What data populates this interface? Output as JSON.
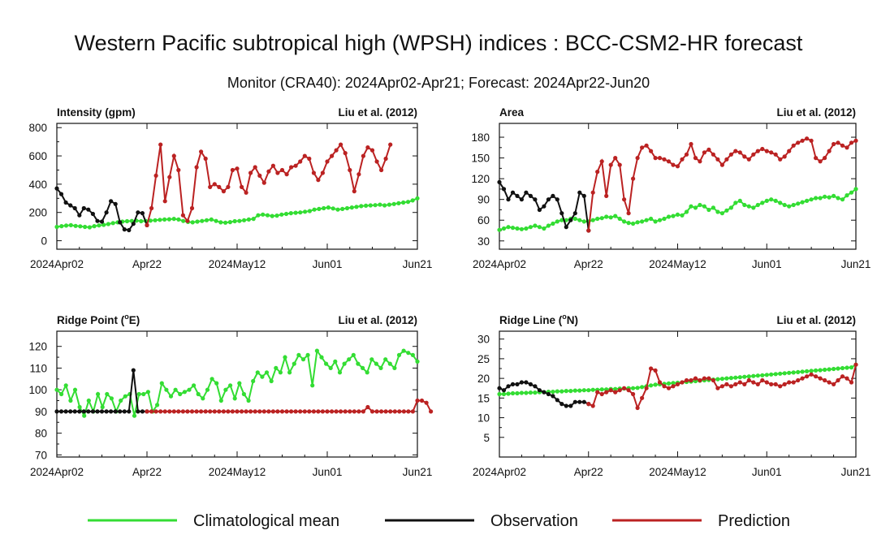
{
  "title": "Western Pacific subtropical high (WPSH) indices : BCC-CSM2-HR forecast",
  "subtitle": "Monitor (CRA40): 2024Apr02-Apr21; Forecast: 2024Apr22-Jun20",
  "colors": {
    "climatology": "#33dd33",
    "observation": "#111111",
    "prediction": "#bb2222"
  },
  "legend": [
    {
      "key": "climatology",
      "label": "Climatological mean"
    },
    {
      "key": "observation",
      "label": "Observation"
    },
    {
      "key": "prediction",
      "label": "Prediction"
    }
  ],
  "chart_data": [
    {
      "type": "line",
      "title_main": "Intensity (gpm)",
      "title_ref": "Liu et al. (2012)",
      "x_tick_labels": [
        "2024Apr02",
        "Apr22",
        "2024May12",
        "Jun01",
        "Jun21"
      ],
      "x_tick_days": [
        0,
        20,
        40,
        60,
        80
      ],
      "ylim": [
        -60,
        830
      ],
      "yticks": [
        0,
        200,
        400,
        600,
        800
      ],
      "series": [
        {
          "name": "Climatological mean",
          "key": "climatology",
          "x_start": 0,
          "values": [
            98,
            103,
            107,
            110,
            105,
            102,
            98,
            95,
            103,
            108,
            112,
            118,
            125,
            130,
            135,
            138,
            140,
            142,
            138,
            140,
            142,
            145,
            148,
            150,
            152,
            155,
            150,
            140,
            133,
            130,
            135,
            140,
            145,
            150,
            140,
            130,
            128,
            132,
            138,
            140,
            145,
            150,
            155,
            180,
            185,
            180,
            175,
            178,
            185,
            190,
            195,
            198,
            200,
            205,
            210,
            220,
            225,
            230,
            235,
            228,
            220,
            225,
            230,
            235,
            240,
            245,
            248,
            250,
            252,
            255,
            250,
            255,
            260,
            265,
            270,
            275,
            285,
            300
          ]
        },
        {
          "name": "Observation",
          "key": "observation",
          "x_start": 0,
          "values": [
            370,
            330,
            270,
            250,
            230,
            180,
            230,
            220,
            190,
            140,
            135,
            200,
            280,
            260,
            130,
            80,
            75,
            120,
            200,
            195,
            110
          ]
        },
        {
          "name": "Prediction",
          "key": "prediction",
          "x_start": 20,
          "values": [
            110,
            230,
            460,
            680,
            280,
            450,
            600,
            500,
            180,
            140,
            230,
            520,
            630,
            580,
            380,
            400,
            380,
            350,
            380,
            500,
            510,
            380,
            340,
            480,
            520,
            460,
            410,
            490,
            530,
            480,
            500,
            470,
            520,
            530,
            560,
            600,
            580,
            480,
            430,
            480,
            560,
            600,
            640,
            680,
            620,
            500,
            350,
            470,
            600,
            660,
            640,
            560,
            500,
            580,
            680
          ]
        }
      ]
    },
    {
      "type": "line",
      "title_main": "Area",
      "title_ref": "Liu et al. (2012)",
      "x_tick_labels": [
        "2024Apr02",
        "Apr22",
        "2024May12",
        "Jun01",
        "Jun21"
      ],
      "x_tick_days": [
        0,
        20,
        40,
        60,
        80
      ],
      "ylim": [
        18,
        200
      ],
      "yticks": [
        30,
        60,
        90,
        120,
        150,
        180
      ],
      "series": [
        {
          "name": "Climatological mean",
          "key": "climatology",
          "x_start": 0,
          "values": [
            46,
            48,
            50,
            49,
            48,
            47,
            48,
            50,
            52,
            50,
            48,
            52,
            55,
            58,
            60,
            60,
            62,
            62,
            60,
            58,
            58,
            60,
            62,
            63,
            65,
            64,
            66,
            62,
            58,
            56,
            55,
            57,
            58,
            60,
            62,
            58,
            60,
            62,
            65,
            66,
            68,
            67,
            72,
            80,
            78,
            82,
            80,
            75,
            78,
            72,
            70,
            74,
            78,
            85,
            88,
            82,
            80,
            78,
            82,
            85,
            88,
            90,
            88,
            85,
            82,
            80,
            82,
            84,
            86,
            88,
            90,
            92,
            92,
            94,
            93,
            95,
            92,
            90,
            96,
            100,
            105
          ]
        },
        {
          "name": "Observation",
          "key": "observation",
          "x_start": 0,
          "values": [
            115,
            105,
            90,
            100,
            95,
            90,
            100,
            95,
            90,
            75,
            80,
            90,
            95,
            90,
            70,
            50,
            60,
            70,
            100,
            95,
            45
          ]
        },
        {
          "name": "Prediction",
          "key": "prediction",
          "x_start": 20,
          "values": [
            45,
            100,
            130,
            145,
            95,
            140,
            150,
            140,
            90,
            70,
            120,
            150,
            165,
            168,
            160,
            150,
            150,
            148,
            145,
            140,
            138,
            148,
            155,
            170,
            150,
            145,
            158,
            162,
            155,
            148,
            140,
            148,
            155,
            160,
            158,
            152,
            148,
            155,
            160,
            163,
            160,
            158,
            155,
            148,
            152,
            160,
            168,
            172,
            175,
            178,
            175,
            150,
            145,
            150,
            160,
            170,
            172,
            168,
            165,
            172,
            175
          ]
        }
      ]
    },
    {
      "type": "line",
      "title_main": "Ridge Point (",
      "title_sup": "o",
      "title_unit": "E)",
      "title_ref": "Liu et al. (2012)",
      "x_tick_labels": [
        "2024Apr02",
        "Apr22",
        "2024May12",
        "Jun01",
        "Jun21"
      ],
      "x_tick_days": [
        0,
        20,
        40,
        60,
        80
      ],
      "ylim": [
        69,
        127
      ],
      "yticks": [
        70,
        80,
        90,
        100,
        110,
        120
      ],
      "series": [
        {
          "name": "Climatological mean",
          "key": "climatology",
          "x_start": 0,
          "values": [
            100,
            98,
            102,
            95,
            100,
            92,
            88,
            95,
            90,
            98,
            92,
            98,
            96,
            90,
            95,
            97,
            98,
            88,
            98,
            98,
            99,
            90,
            93,
            103,
            100,
            97,
            100,
            98,
            99,
            100,
            102,
            98,
            96,
            100,
            105,
            103,
            95,
            100,
            102,
            96,
            103,
            98,
            95,
            104,
            108,
            106,
            108,
            104,
            110,
            108,
            115,
            108,
            112,
            116,
            114,
            116,
            102,
            118,
            115,
            112,
            110,
            113,
            108,
            112,
            114,
            116,
            112,
            110,
            108,
            114,
            112,
            110,
            114,
            112,
            110,
            116,
            118,
            117,
            116,
            113
          ]
        },
        {
          "name": "Observation",
          "key": "observation",
          "x_start": 0,
          "values": [
            90,
            90,
            90,
            90,
            90,
            90,
            90,
            90,
            90,
            90,
            90,
            90,
            90,
            90,
            90,
            90,
            90,
            109,
            90,
            90,
            90
          ]
        },
        {
          "name": "Prediction",
          "key": "prediction",
          "x_start": 20,
          "values": [
            90,
            90,
            90,
            90,
            90,
            90,
            90,
            90,
            90,
            90,
            90,
            90,
            90,
            90,
            90,
            90,
            90,
            90,
            90,
            90,
            90,
            90,
            90,
            90,
            90,
            90,
            90,
            90,
            90,
            90,
            90,
            90,
            90,
            90,
            90,
            90,
            90,
            90,
            90,
            90,
            90,
            90,
            90,
            90,
            90,
            90,
            90,
            90,
            90,
            92,
            90,
            90,
            90,
            90,
            90,
            90,
            90,
            90,
            90,
            90,
            95,
            95,
            94,
            90
          ]
        }
      ]
    },
    {
      "type": "line",
      "title_main": "Ridge Line (",
      "title_sup": "o",
      "title_unit": "N)",
      "title_ref": "Liu et al. (2012)",
      "x_tick_labels": [
        "2024Apr02",
        "Apr22",
        "2024May12",
        "Jun01",
        "Jun21"
      ],
      "x_tick_days": [
        0,
        20,
        40,
        60,
        80
      ],
      "ylim": [
        0,
        32
      ],
      "yticks": [
        5,
        10,
        15,
        20,
        25,
        30
      ],
      "series": [
        {
          "name": "Climatological mean",
          "key": "climatology",
          "x_start": 0,
          "values": [
            16,
            16,
            16.1,
            16.2,
            16.2,
            16.3,
            16.3,
            16.4,
            16.4,
            16.5,
            16.5,
            16.6,
            16.6,
            16.7,
            16.7,
            16.8,
            16.8,
            16.9,
            16.9,
            17,
            17,
            17.1,
            17.1,
            17.2,
            17.2,
            17.3,
            17.3,
            17.4,
            17.4,
            17.5,
            17.5,
            17.6,
            17.8,
            18,
            18.2,
            18.4,
            18.5,
            18.6,
            18.7,
            18.8,
            18.9,
            19,
            19.1,
            19.2,
            19.3,
            19.4,
            19.5,
            19.6,
            19.7,
            19.8,
            19.9,
            20,
            20.1,
            20.2,
            20.3,
            20.4,
            20.5,
            20.6,
            20.7,
            20.8,
            20.9,
            21,
            21.1,
            21.2,
            21.3,
            21.4,
            21.5,
            21.6,
            21.7,
            21.8,
            21.9,
            22,
            22.1,
            22.2,
            22.3,
            22.4,
            22.5,
            22.6,
            22.7,
            22.8,
            23.5
          ]
        },
        {
          "name": "Observation",
          "key": "observation",
          "x_start": 0,
          "values": [
            17.5,
            17,
            18,
            18.5,
            18.5,
            19,
            19,
            18.5,
            18,
            17,
            16.5,
            16,
            15.5,
            14.5,
            13.5,
            13,
            13,
            14,
            14,
            14,
            13.5
          ]
        },
        {
          "name": "Prediction",
          "key": "prediction",
          "x_start": 20,
          "values": [
            13.5,
            13,
            16.5,
            16,
            16.5,
            17,
            16.5,
            17,
            17.5,
            17,
            16,
            12.5,
            15,
            17.5,
            22.5,
            22,
            19,
            18,
            17.5,
            18,
            18.5,
            19,
            19.5,
            19.5,
            20,
            19.5,
            20,
            20,
            19.5,
            17.5,
            18,
            18.5,
            18,
            18.5,
            19,
            18.5,
            19.5,
            19,
            18.5,
            19.5,
            19,
            18.5,
            18.5,
            18,
            18.5,
            19,
            19,
            19.5,
            20,
            20.5,
            21,
            20.5,
            20,
            19.5,
            19,
            18.5,
            19.5,
            20.5,
            20,
            19,
            23.5
          ]
        }
      ]
    }
  ]
}
